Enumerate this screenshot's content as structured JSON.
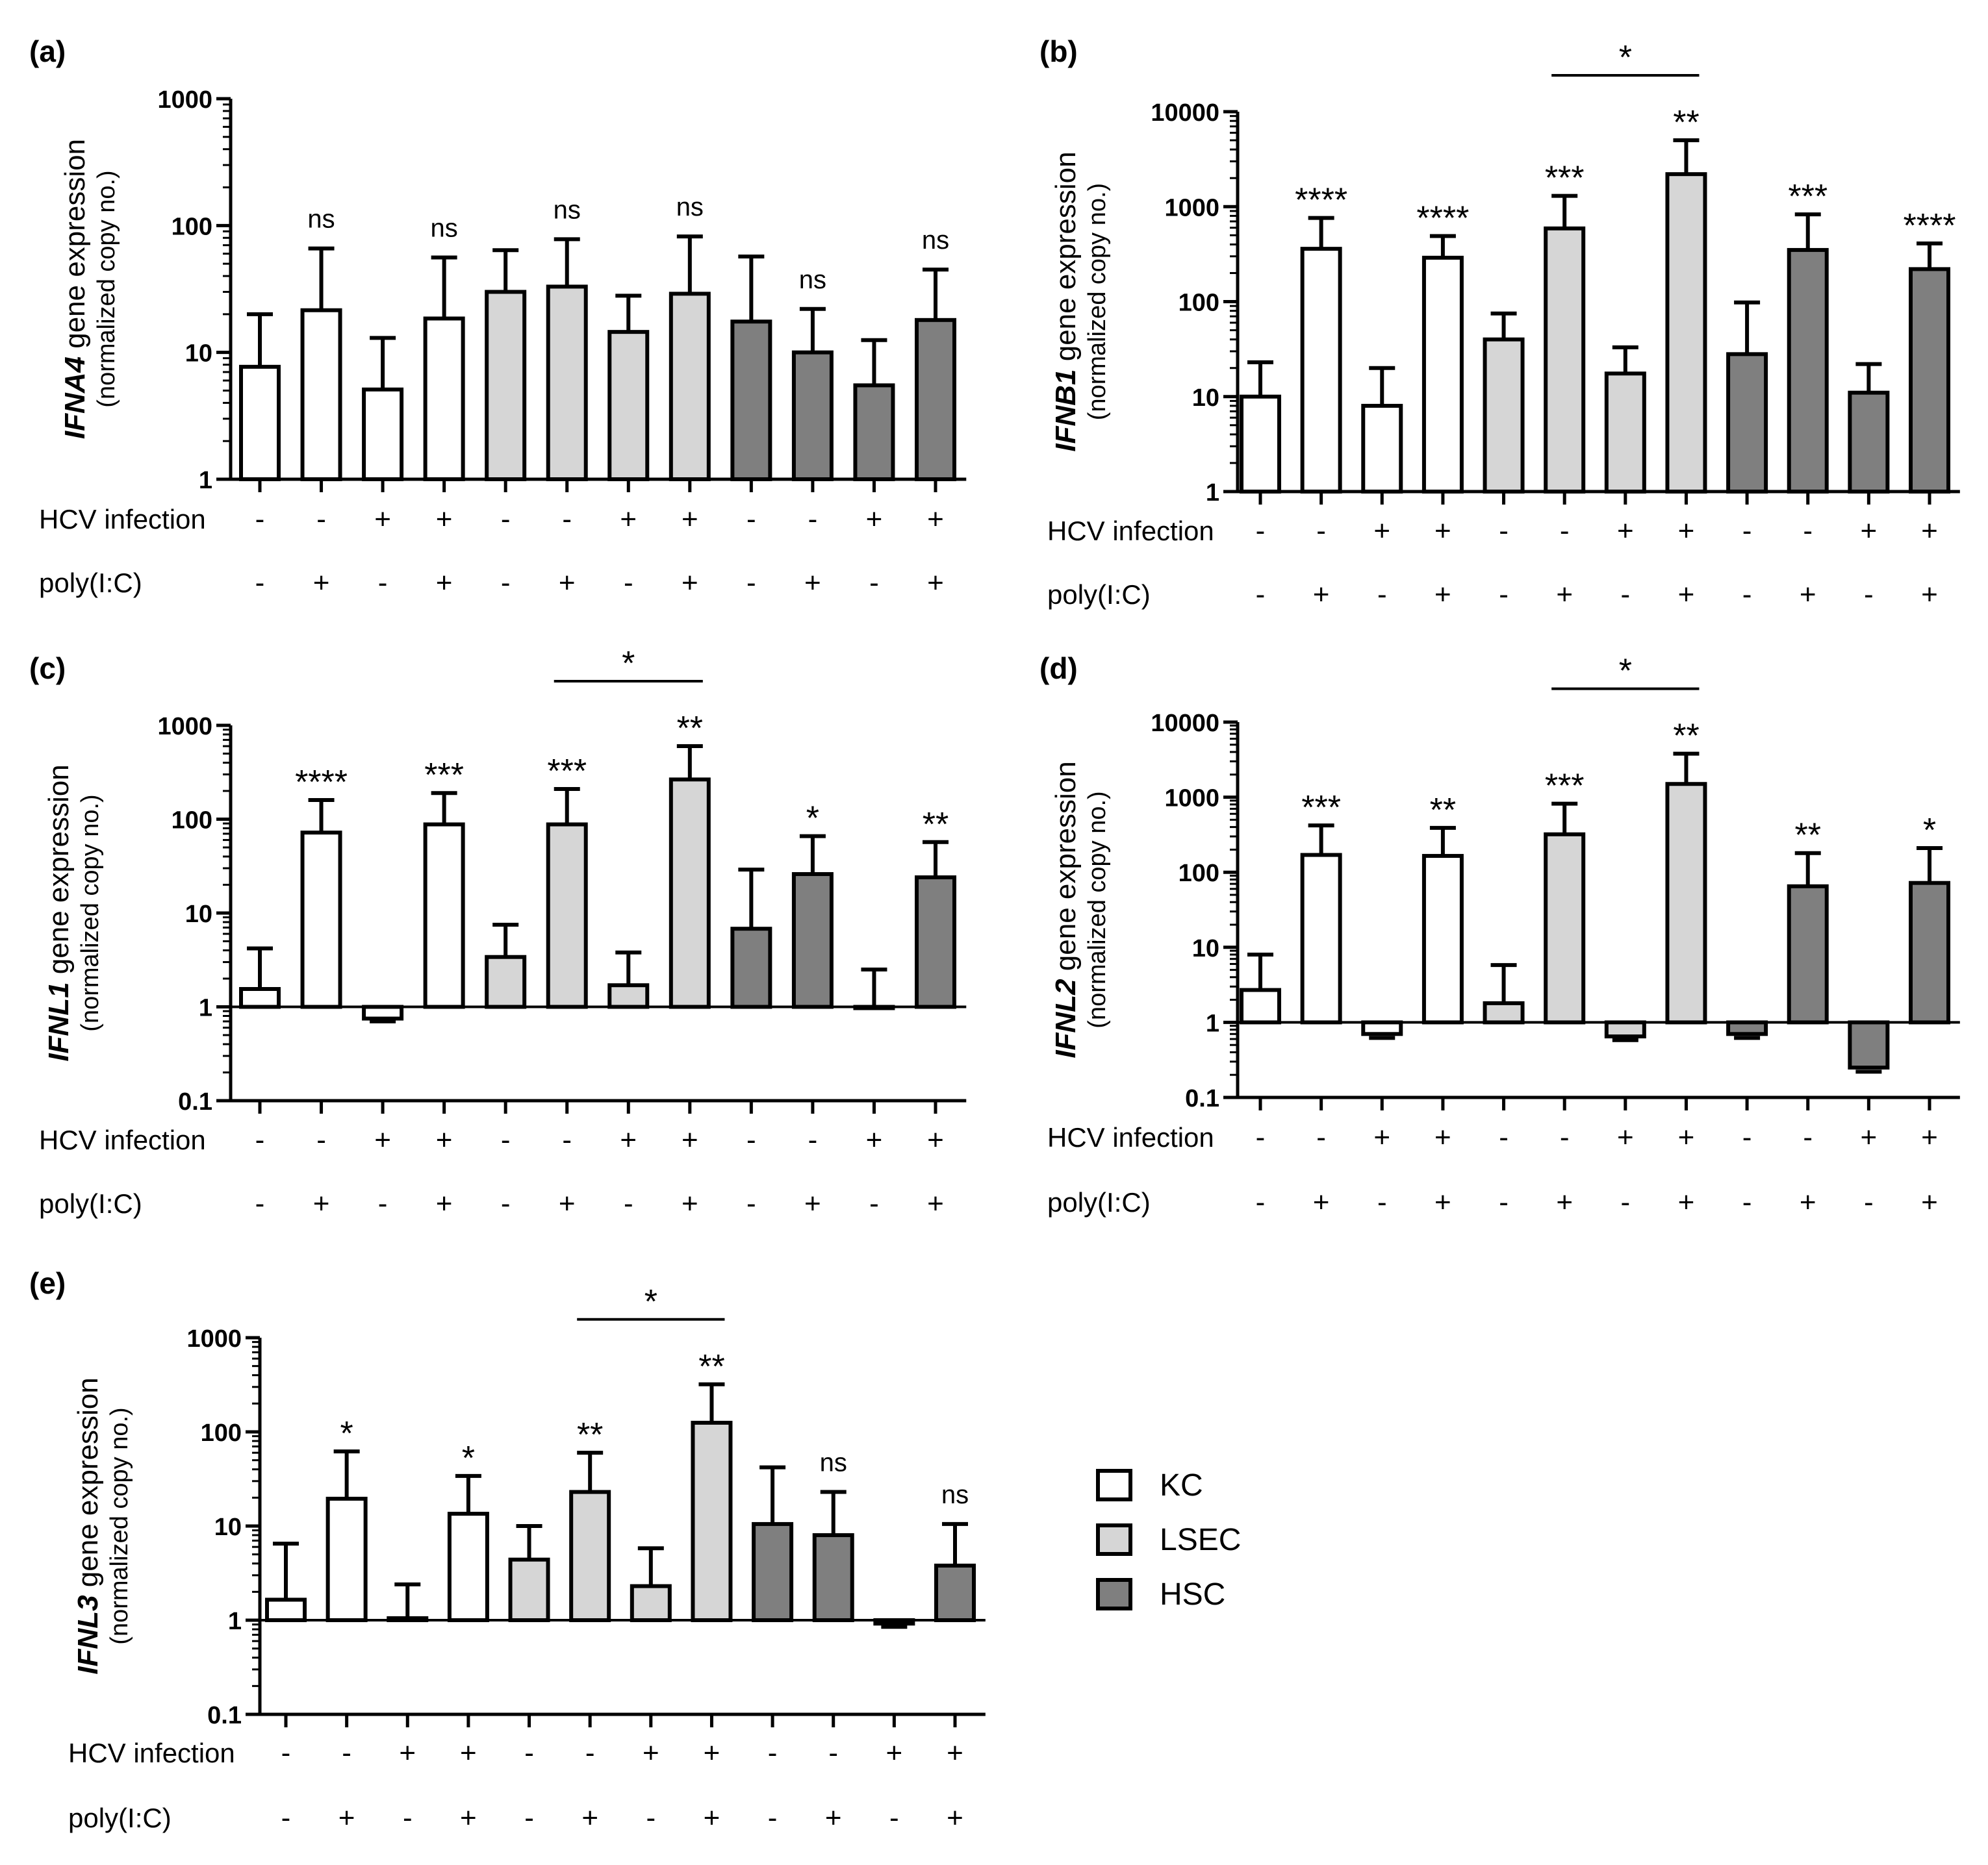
{
  "figure": {
    "row_labels": [
      "HCV infection",
      "poly(I:C)"
    ],
    "ylabel_suffix": " gene expression",
    "ylabel_sub": "(normalized copy no.)",
    "legend": [
      {
        "label": "KC",
        "color": "#ffffff"
      },
      {
        "label": "LSEC",
        "color": "#d6d6d6"
      },
      {
        "label": "HSC",
        "color": "#7f7f7f"
      }
    ]
  },
  "chart_data": [
    {
      "type": "bar",
      "panel": "(a)",
      "gene": "IFNA4",
      "yscale": "log",
      "ylim": [
        1,
        1000
      ],
      "yticks": [
        "1",
        "10",
        "100",
        "1000"
      ],
      "hcv": [
        "-",
        "-",
        "+",
        "+",
        "-",
        "-",
        "+",
        "+",
        "-",
        "-",
        "+",
        "+"
      ],
      "polyic": [
        "-",
        "+",
        "-",
        "+",
        "-",
        "+",
        "-",
        "+",
        "-",
        "+",
        "-",
        "+"
      ],
      "cell_types": [
        "KC",
        "KC",
        "KC",
        "KC",
        "LSEC",
        "LSEC",
        "LSEC",
        "LSEC",
        "HSC",
        "HSC",
        "HSC",
        "HSC"
      ],
      "values": [
        7.7,
        21.5,
        5.1,
        18.5,
        30,
        33,
        14.5,
        29,
        17.5,
        10,
        5.5,
        18
      ],
      "errors": [
        20,
        66,
        13,
        56,
        64,
        78,
        28,
        82,
        57,
        22,
        12.5,
        45
      ],
      "significance": [
        "",
        "ns",
        "",
        "ns",
        "",
        "ns",
        "",
        "ns",
        "",
        "ns",
        "",
        "ns"
      ],
      "brackets": []
    },
    {
      "type": "bar",
      "panel": "(b)",
      "gene": "IFNB1",
      "yscale": "log",
      "ylim": [
        1,
        10000
      ],
      "yticks": [
        "1",
        "10",
        "100",
        "1000",
        "10000"
      ],
      "hcv": [
        "-",
        "-",
        "+",
        "+",
        "-",
        "-",
        "+",
        "+",
        "-",
        "-",
        "+",
        "+"
      ],
      "polyic": [
        "-",
        "+",
        "-",
        "+",
        "-",
        "+",
        "-",
        "+",
        "-",
        "+",
        "-",
        "+"
      ],
      "cell_types": [
        "KC",
        "KC",
        "KC",
        "KC",
        "LSEC",
        "LSEC",
        "LSEC",
        "LSEC",
        "HSC",
        "HSC",
        "HSC",
        "HSC"
      ],
      "values": [
        10,
        360,
        8,
        290,
        40,
        590,
        17.5,
        2200,
        28,
        350,
        11,
        220
      ],
      "errors": [
        23,
        760,
        20,
        490,
        75,
        1300,
        33,
        5000,
        98,
        830,
        22,
        410
      ],
      "significance": [
        "",
        "****",
        "",
        "****",
        "",
        "***",
        "",
        "**",
        "",
        "***",
        "",
        "****"
      ],
      "brackets": [
        {
          "from": 5,
          "to": 7,
          "label": "*"
        }
      ]
    },
    {
      "type": "bar",
      "panel": "(c)",
      "gene": "IFNL1",
      "yscale": "log",
      "ylim": [
        0.1,
        1000
      ],
      "yticks": [
        "0.1",
        "1",
        "10",
        "100",
        "1000"
      ],
      "hcv": [
        "-",
        "-",
        "+",
        "+",
        "-",
        "-",
        "+",
        "+",
        "-",
        "-",
        "+",
        "+"
      ],
      "polyic": [
        "-",
        "+",
        "-",
        "+",
        "-",
        "+",
        "-",
        "+",
        "-",
        "+",
        "-",
        "+"
      ],
      "cell_types": [
        "KC",
        "KC",
        "KC",
        "KC",
        "LSEC",
        "LSEC",
        "LSEC",
        "LSEC",
        "HSC",
        "HSC",
        "HSC",
        "HSC"
      ],
      "values": [
        1.55,
        72,
        0.75,
        88,
        3.4,
        88,
        1.7,
        265,
        6.8,
        26,
        0.97,
        24
      ],
      "errors": [
        4.2,
        160,
        0.7,
        190,
        7.5,
        210,
        3.8,
        600,
        29,
        66,
        2.5,
        57
      ],
      "significance": [
        "",
        "****",
        "",
        "***",
        "",
        "***",
        "",
        "**",
        "",
        "*",
        "",
        "**"
      ],
      "brackets": [
        {
          "from": 5,
          "to": 7,
          "label": "*"
        }
      ]
    },
    {
      "type": "bar",
      "panel": "(d)",
      "gene": "IFNL2",
      "yscale": "log",
      "ylim": [
        0.1,
        10000
      ],
      "yticks": [
        "0.1",
        "1",
        "10",
        "100",
        "1000",
        "10000"
      ],
      "hcv": [
        "-",
        "-",
        "+",
        "+",
        "-",
        "-",
        "+",
        "+",
        "-",
        "-",
        "+",
        "+"
      ],
      "polyic": [
        "-",
        "+",
        "-",
        "+",
        "-",
        "+",
        "-",
        "+",
        "-",
        "+",
        "-",
        "+"
      ],
      "cell_types": [
        "KC",
        "KC",
        "KC",
        "KC",
        "LSEC",
        "LSEC",
        "LSEC",
        "LSEC",
        "HSC",
        "HSC",
        "HSC",
        "HSC"
      ],
      "values": [
        2.7,
        170,
        0.7,
        165,
        1.8,
        320,
        0.65,
        1500,
        0.7,
        65,
        0.25,
        72
      ],
      "errors": [
        8,
        420,
        0.62,
        390,
        5.8,
        820,
        0.58,
        3800,
        0.62,
        180,
        0.22,
        210
      ],
      "significance": [
        "",
        "***",
        "",
        "**",
        "",
        "***",
        "",
        "**",
        "",
        "**",
        "",
        "*"
      ],
      "brackets": [
        {
          "from": 5,
          "to": 7,
          "label": "*"
        }
      ]
    },
    {
      "type": "bar",
      "panel": "(e)",
      "gene": "IFNL3",
      "yscale": "log",
      "ylim": [
        0.1,
        1000
      ],
      "yticks": [
        "0.1",
        "1",
        "10",
        "100",
        "1000"
      ],
      "hcv": [
        "-",
        "-",
        "+",
        "+",
        "-",
        "-",
        "+",
        "+",
        "-",
        "-",
        "+",
        "+"
      ],
      "polyic": [
        "-",
        "+",
        "-",
        "+",
        "-",
        "+",
        "-",
        "+",
        "-",
        "+",
        "-",
        "+"
      ],
      "cell_types": [
        "KC",
        "KC",
        "KC",
        "KC",
        "LSEC",
        "LSEC",
        "LSEC",
        "LSEC",
        "HSC",
        "HSC",
        "HSC",
        "HSC"
      ],
      "values": [
        1.65,
        19.5,
        1.05,
        13.5,
        4.4,
        23,
        2.3,
        125,
        10.5,
        8,
        0.92,
        3.8
      ],
      "errors": [
        6.5,
        62,
        2.4,
        34,
        10,
        60,
        5.8,
        320,
        42,
        23,
        0.85,
        10.5
      ],
      "significance": [
        "",
        "*",
        "",
        "*",
        "",
        "**",
        "",
        "**",
        "",
        "ns",
        "",
        "ns"
      ],
      "brackets": [
        {
          "from": 5,
          "to": 7,
          "label": "*"
        }
      ]
    }
  ]
}
